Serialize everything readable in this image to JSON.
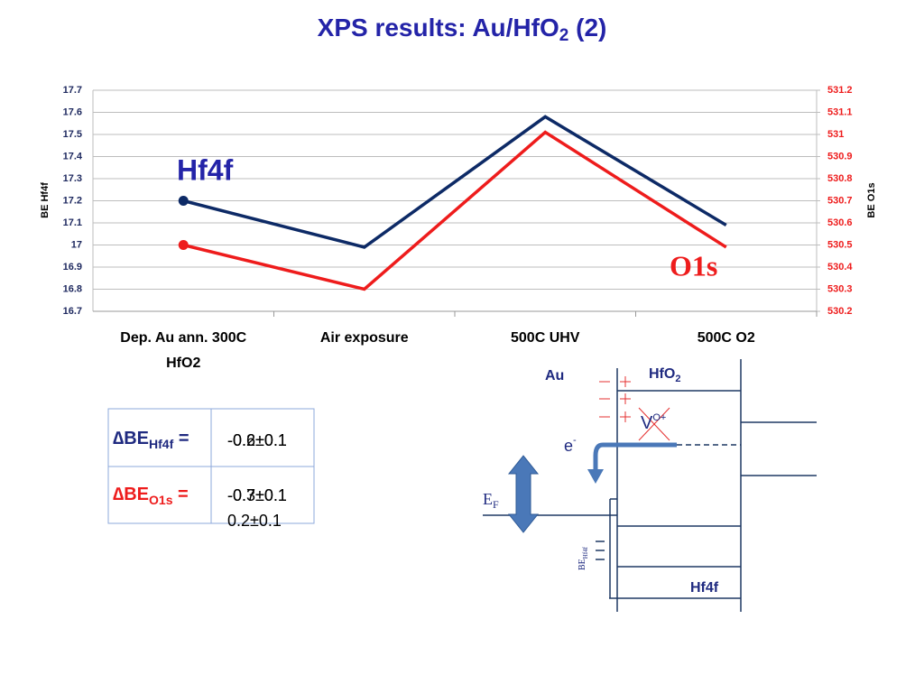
{
  "chart_data": {
    "type": "line",
    "title": "XPS results: Au/HfO",
    "title_sub": "2",
    "title_end": " (2)",
    "categories": [
      "Dep. Au ann. 300C HfO2",
      "Air exposure",
      "500C UHV",
      "500C O2"
    ],
    "series": [
      {
        "name": "Hf4f",
        "color": "#0d2a66",
        "values": [
          17.2,
          16.99,
          17.58,
          17.09
        ]
      },
      {
        "name": "O1s",
        "color": "#ee1c1c",
        "axis": "y2",
        "values": [
          530.5,
          530.3,
          531.01,
          530.49
        ]
      }
    ],
    "ylabel": "BE Hf4f",
    "y2label": "BE O1s",
    "ylim": [
      16.7,
      17.7
    ],
    "yticks": [
      16.7,
      16.8,
      16.9,
      17,
      17.1,
      17.2,
      17.3,
      17.4,
      17.5,
      17.6,
      17.7
    ],
    "y2lim": [
      530.2,
      531.2
    ],
    "y2ticks": [
      530.2,
      530.3,
      530.4,
      530.5,
      530.6,
      530.7,
      530.8,
      530.9,
      531,
      531.1,
      531.2
    ],
    "grid": true
  },
  "table": {
    "rows": [
      {
        "label": "∆BE",
        "sub": "Hf4f",
        "eq": " =",
        "values": [
          "-0.6±0.1",
          "-0.2±0.1"
        ]
      },
      {
        "label": "∆BE",
        "sub": "O1s",
        "eq": " =",
        "values": [
          "-0.3±0.1",
          "-0.7±0.1",
          "0.2±0.1"
        ]
      }
    ]
  },
  "diagram": {
    "au": "Au",
    "hfo": "HfO",
    "hfo_sub": "2",
    "vo": "V",
    "vo_sup": "O+",
    "e": "e",
    "e_sup": "-",
    "ef": "E",
    "ef_sub": "F",
    "be": "BE",
    "be_sub": "Hf4f",
    "hf4f": "Hf4f"
  }
}
